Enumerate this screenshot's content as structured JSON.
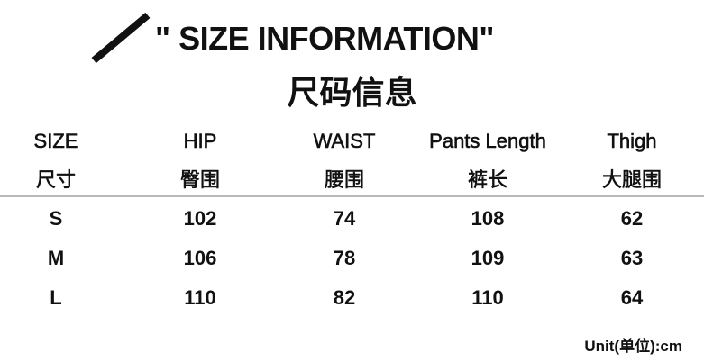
{
  "title": "\" SIZE INFORMATION\"",
  "subtitle": "尺码信息",
  "icon": "slash-icon",
  "table": {
    "columns": [
      {
        "en": "SIZE",
        "zh": "尺寸"
      },
      {
        "en": "HIP",
        "zh": "臀围"
      },
      {
        "en": "WAIST",
        "zh": "腰围"
      },
      {
        "en": "Pants  Length",
        "zh": "裤长"
      },
      {
        "en": "Thigh",
        "zh": "大腿围"
      }
    ],
    "rows": [
      [
        "S",
        "102",
        "74",
        "108",
        "62"
      ],
      [
        "M",
        "106",
        "78",
        "109",
        "63"
      ],
      [
        "L",
        "110",
        "82",
        "110",
        "64"
      ]
    ]
  },
  "unit": "Unit(单位):cm"
}
